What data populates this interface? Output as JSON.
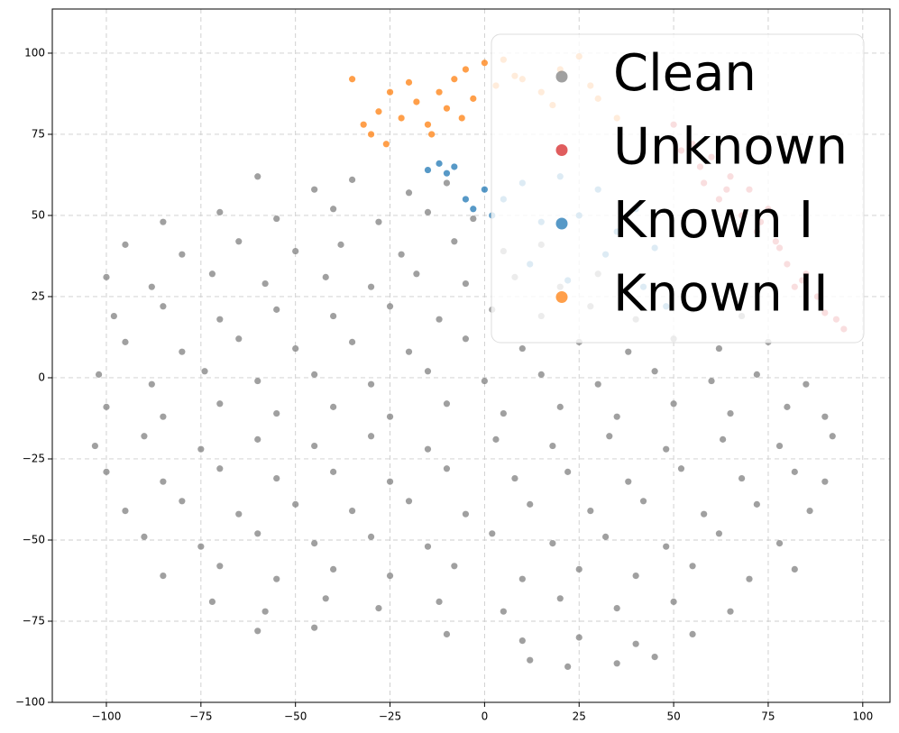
{
  "chart_data": {
    "type": "scatter",
    "xlim": [
      -114.3,
      107.2
    ],
    "ylim": [
      -100,
      113.6
    ],
    "xticks": [
      {
        "value": -100,
        "label": "−100"
      },
      {
        "value": -75,
        "label": "−75"
      },
      {
        "value": -50,
        "label": "−50"
      },
      {
        "value": -25,
        "label": "−25"
      },
      0,
      25,
      50,
      75,
      100
    ],
    "yticks": [
      {
        "value": -100,
        "label": "−100"
      },
      {
        "value": -75,
        "label": "−75"
      },
      {
        "value": -50,
        "label": "−50"
      },
      {
        "value": -25,
        "label": "−25"
      },
      0,
      25,
      50,
      75,
      100
    ],
    "grid": true,
    "legend": "upper right",
    "series": [
      {
        "name": "Clean",
        "color": "#808080",
        "x": [
          -60,
          -45,
          -35,
          -20,
          -10,
          -85,
          -70,
          -55,
          -40,
          -28,
          -15,
          -3,
          -95,
          -80,
          -65,
          -50,
          -38,
          -22,
          -8,
          5,
          15,
          -100,
          -88,
          -72,
          -58,
          -42,
          -30,
          -18,
          -5,
          8,
          20,
          30,
          -98,
          -85,
          -70,
          -55,
          -40,
          -25,
          -12,
          2,
          15,
          28,
          40,
          55,
          68,
          -95,
          -80,
          -65,
          -50,
          -35,
          -20,
          -5,
          10,
          25,
          38,
          50,
          62,
          75,
          -102,
          -88,
          -74,
          -60,
          -45,
          -30,
          -15,
          0,
          15,
          30,
          45,
          60,
          72,
          85,
          -100,
          -85,
          -70,
          -55,
          -40,
          -25,
          -10,
          5,
          20,
          35,
          50,
          65,
          80,
          90,
          -103,
          -90,
          -75,
          -60,
          -45,
          -30,
          -15,
          3,
          18,
          33,
          48,
          63,
          78,
          92,
          -100,
          -85,
          -70,
          -55,
          -40,
          -25,
          -10,
          8,
          22,
          38,
          52,
          68,
          82,
          90,
          -95,
          -80,
          -65,
          -50,
          -35,
          -20,
          -5,
          12,
          28,
          42,
          58,
          72,
          86,
          -90,
          -75,
          -60,
          -45,
          -30,
          -15,
          2,
          18,
          32,
          48,
          62,
          78,
          -85,
          -70,
          -55,
          -40,
          -25,
          -8,
          10,
          25,
          40,
          55,
          70,
          82,
          -72,
          -58,
          -42,
          -28,
          -12,
          5,
          20,
          35,
          50,
          65,
          -60,
          -45,
          -10,
          10,
          25,
          40,
          55,
          12,
          22,
          35,
          45
        ],
        "values": [
          62,
          58,
          61,
          57,
          60,
          48,
          51,
          49,
          52,
          48,
          51,
          49,
          41,
          38,
          42,
          39,
          41,
          38,
          42,
          39,
          41,
          31,
          28,
          32,
          29,
          31,
          28,
          32,
          29,
          31,
          28,
          32,
          19,
          22,
          18,
          21,
          19,
          22,
          18,
          21,
          19,
          22,
          18,
          21,
          19,
          11,
          8,
          12,
          9,
          11,
          8,
          12,
          9,
          11,
          8,
          12,
          9,
          11,
          1,
          -2,
          2,
          -1,
          1,
          -2,
          2,
          -1,
          1,
          -2,
          2,
          -1,
          1,
          -2,
          -9,
          -12,
          -8,
          -11,
          -9,
          -12,
          -8,
          -11,
          -9,
          -12,
          -8,
          -11,
          -9,
          -12,
          -21,
          -18,
          -22,
          -19,
          -21,
          -18,
          -22,
          -19,
          -21,
          -18,
          -22,
          -19,
          -21,
          -18,
          -29,
          -32,
          -28,
          -31,
          -29,
          -32,
          -28,
          -31,
          -29,
          -32,
          -28,
          -31,
          -29,
          -32,
          -41,
          -38,
          -42,
          -39,
          -41,
          -38,
          -42,
          -39,
          -41,
          -38,
          -42,
          -39,
          -41,
          -49,
          -52,
          -48,
          -51,
          -49,
          -52,
          -48,
          -51,
          -49,
          -52,
          -48,
          -51,
          -61,
          -58,
          -62,
          -59,
          -61,
          -58,
          -62,
          -59,
          -61,
          -58,
          -62,
          -59,
          -69,
          -72,
          -68,
          -71,
          -69,
          -72,
          -68,
          -71,
          -69,
          -72,
          -78,
          -77,
          -79,
          -81,
          -80,
          -82,
          -79,
          -87,
          -89,
          -88,
          -86
        ]
      },
      {
        "name": "Unknown",
        "color": "#d62728",
        "x": [
          50,
          55,
          60,
          58,
          65,
          62,
          70,
          68,
          75,
          72,
          78,
          80,
          85,
          82,
          88,
          90,
          93,
          52,
          57,
          64,
          73,
          77,
          84,
          95
        ],
        "values": [
          78,
          72,
          68,
          60,
          62,
          55,
          58,
          50,
          52,
          45,
          40,
          35,
          32,
          28,
          25,
          20,
          18,
          70,
          65,
          58,
          48,
          42,
          30,
          15
        ]
      },
      {
        "name": "Known I",
        "color": "#1f77b4",
        "x": [
          -15,
          -12,
          -10,
          -8,
          -5,
          -3,
          0,
          2,
          5,
          10,
          15,
          20,
          25,
          30,
          35,
          40,
          45,
          12,
          22,
          32,
          42,
          48
        ],
        "values": [
          64,
          66,
          63,
          65,
          55,
          52,
          58,
          50,
          55,
          60,
          48,
          62,
          50,
          58,
          45,
          52,
          40,
          35,
          30,
          38,
          28,
          22
        ]
      },
      {
        "name": "Known II",
        "color": "#ff7f0e",
        "x": [
          -35,
          -32,
          -30,
          -28,
          -25,
          -22,
          -20,
          -18,
          -15,
          -12,
          -10,
          -8,
          -5,
          -3,
          0,
          3,
          5,
          10,
          15,
          20,
          25,
          30,
          35,
          -26,
          -14,
          -6,
          8,
          18,
          28
        ],
        "values": [
          92,
          78,
          75,
          82,
          88,
          80,
          91,
          85,
          78,
          88,
          83,
          92,
          95,
          86,
          97,
          90,
          98,
          92,
          88,
          95,
          99,
          86,
          80,
          72,
          75,
          80,
          93,
          84,
          90
        ]
      }
    ]
  }
}
